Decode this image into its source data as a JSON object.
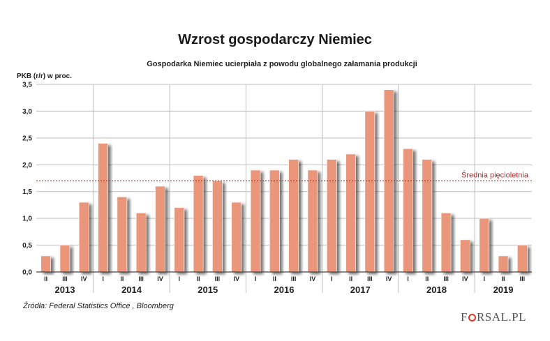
{
  "chart_data": {
    "type": "bar",
    "title": "Wzrost gospodarczy Niemiec",
    "subtitle": "Gospodarka Niemiec ucierpiała z powodu globalnego załamania produkcji",
    "ylabel": "PKB (r/r) w proc.",
    "ylim": [
      0,
      3.5
    ],
    "yticks": [
      "0,0",
      "0,5",
      "1,0",
      "1,5",
      "2,0",
      "2,5",
      "3,0",
      "3,5"
    ],
    "grid": true,
    "categories": [
      "II",
      "III",
      "IV",
      "I",
      "II",
      "III",
      "IV",
      "I",
      "II",
      "III",
      "IV",
      "I",
      "II",
      "III",
      "IV",
      "I",
      "II",
      "III",
      "IV",
      "I",
      "II",
      "III",
      "IV",
      "I",
      "II",
      "III"
    ],
    "years": [
      {
        "label": "2013",
        "count": 3
      },
      {
        "label": "2014",
        "count": 4
      },
      {
        "label": "2015",
        "count": 4
      },
      {
        "label": "2016",
        "count": 4
      },
      {
        "label": "2017",
        "count": 4
      },
      {
        "label": "2018",
        "count": 4
      },
      {
        "label": "2019",
        "count": 3
      }
    ],
    "values": [
      0.3,
      0.5,
      1.3,
      2.4,
      1.4,
      1.1,
      1.6,
      1.2,
      1.8,
      1.7,
      1.3,
      1.9,
      1.9,
      2.1,
      1.9,
      2.1,
      2.2,
      3.0,
      3.4,
      2.3,
      2.1,
      1.1,
      0.6,
      1.0,
      0.3,
      0.5
    ],
    "reference_line": {
      "value": 1.7,
      "label": "Średnia pięcioletnia",
      "color": "#d42020"
    },
    "bar_color": "#e9967a"
  },
  "source": "Źródła: Federal Statistics Office , Bloomberg",
  "logo": {
    "part1": "F",
    "part2": "RSAL.PL"
  }
}
